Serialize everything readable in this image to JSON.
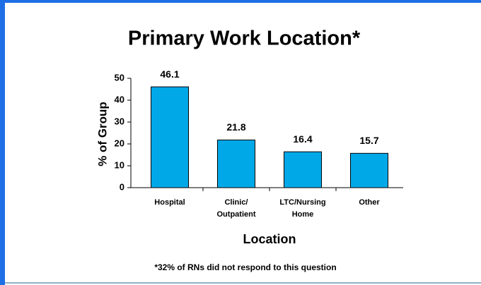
{
  "chart_data": {
    "type": "bar",
    "title": "Primary Work Location*",
    "categories": [
      "Hospital",
      "Clinic/\nOutpatient",
      "LTC/Nursing\nHome",
      "Other"
    ],
    "values": [
      46.1,
      21.8,
      16.4,
      15.7
    ],
    "color": "#00a8e8",
    "ylim": [
      0,
      50
    ],
    "yticks": [
      0,
      10,
      20,
      30,
      40,
      50
    ],
    "ylabel": "% of Group",
    "xlabel": "Location",
    "annotation": "*32% of RNs did not respond to this question",
    "value_labels_shown": true
  }
}
